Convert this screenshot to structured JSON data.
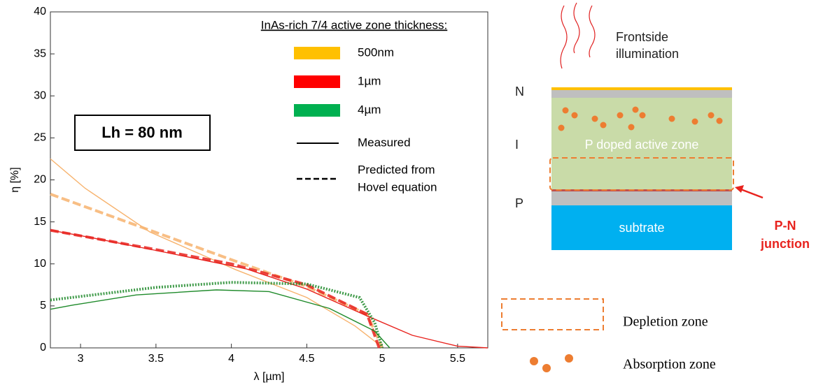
{
  "chart_data": {
    "type": "line",
    "xlabel": "λ [µm]",
    "ylabel": "η [%]",
    "xlim": [
      2.8,
      5.7
    ],
    "xticks": [
      3,
      3.5,
      4,
      4.5,
      5,
      5.5
    ],
    "ylim": [
      0,
      40
    ],
    "yticks": [
      0,
      5,
      10,
      15,
      20,
      25,
      30,
      35,
      40
    ],
    "grid": false,
    "legend_title": "InAs-rich 7/4 active zone thickness:",
    "annotation": "Lh = 80 nm",
    "line_styles": [
      "Measured",
      [
        "Predicted from",
        "Hovel equation"
      ]
    ],
    "series": [
      {
        "name": "500nm",
        "color": "#ffc000",
        "line_color": "#f7b36e",
        "measured_x": [
          2.8,
          3.03,
          3.46,
          4.03,
          4.5,
          4.82,
          4.95,
          5.0
        ],
        "measured": [
          22.5,
          19,
          13.8,
          9.3,
          6,
          2.6,
          0.8,
          0
        ],
        "predicted_x": [
          2.8,
          3.46,
          4.0,
          4.5,
          4.9,
          5.0
        ],
        "predicted": [
          18.3,
          14,
          10.5,
          7.3,
          4,
          0
        ]
      },
      {
        "name": "1µm",
        "color": "#ff0000",
        "line_color": "#e8231e",
        "measured_x": [
          2.8,
          3.05,
          3.5,
          4.1,
          4.5,
          4.9,
          5.2,
          5.5,
          5.7
        ],
        "measured": [
          14,
          13.2,
          11.6,
          9.4,
          7,
          3.8,
          1.5,
          0.2,
          0
        ],
        "predicted_x": [
          2.8,
          3.5,
          4.0,
          4.5,
          4.9,
          4.98
        ],
        "predicted": [
          14,
          11.7,
          10,
          7.5,
          4,
          0
        ]
      },
      {
        "name": "4µm",
        "color": "#00b050",
        "line_color": "#1e8a2a",
        "measured_x": [
          2.8,
          2.95,
          3.37,
          3.9,
          4.25,
          4.65,
          4.95,
          5.05
        ],
        "measured": [
          4.6,
          5.1,
          6.3,
          6.9,
          6.7,
          4.7,
          2,
          0
        ],
        "predicted_x": [
          2.8,
          3.5,
          4.0,
          4.5,
          4.85,
          4.95,
          5.0
        ],
        "predicted": [
          5.7,
          7.2,
          7.8,
          7.6,
          6,
          3,
          0
        ]
      }
    ]
  },
  "diagram": {
    "illumination": [
      "Frontside",
      "illumination"
    ],
    "layers": {
      "n": "N",
      "i": "I",
      "p": "P"
    },
    "active_zone": "P doped active zone",
    "substrate": "subtrate",
    "junction": [
      "P-N",
      "junction"
    ],
    "legend": {
      "depletion": "Depletion zone",
      "absorption": "Absorption zone"
    }
  }
}
